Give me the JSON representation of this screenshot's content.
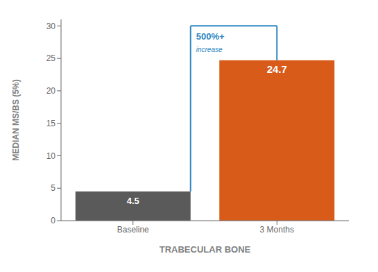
{
  "chart_data": {
    "type": "bar",
    "categories": [
      "Baseline",
      "3 Months"
    ],
    "values": [
      4.5,
      24.7
    ],
    "colors": [
      "#5a5a5a",
      "#D95B1A"
    ],
    "xlabel": "TRABECULAR BONE",
    "ylabel": "MEDIAN MS/BS (5%)",
    "ylim": [
      0,
      31
    ],
    "yticks": [
      0,
      5,
      10,
      15,
      20,
      25,
      30
    ],
    "grid": false,
    "data_labels": true,
    "annotations": [
      {
        "text": "500%+",
        "color": "#2E86C1"
      },
      {
        "text": "increase",
        "color": "#2E86C1"
      }
    ]
  }
}
